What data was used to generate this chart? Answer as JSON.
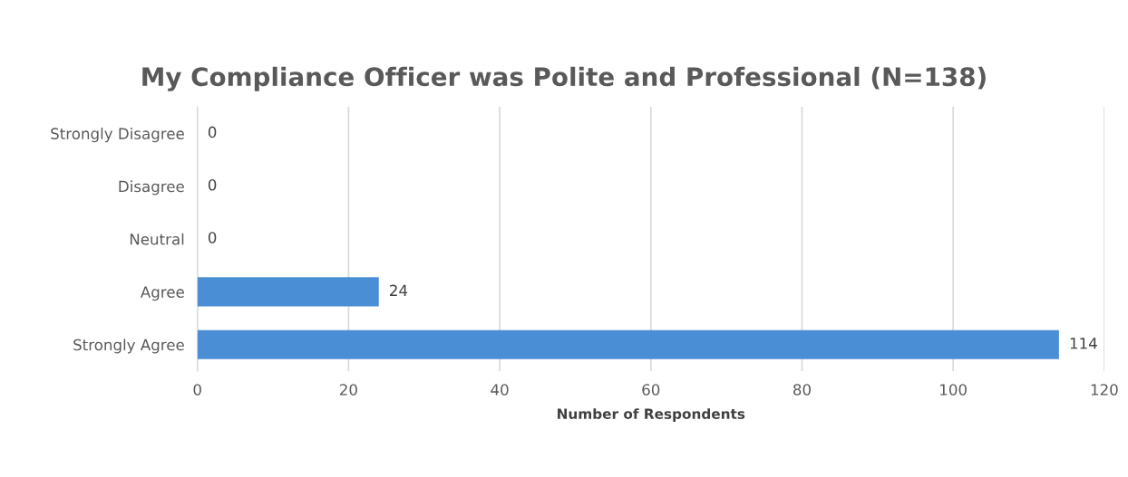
{
  "chart_data": {
    "type": "bar",
    "orientation": "horizontal",
    "title": "My Compliance Officer was Polite and Professional (N=138)",
    "xlabel": "Number of Respondents",
    "categories": [
      "Strongly Disagree",
      "Disagree",
      "Neutral",
      "Agree",
      "Strongly Agree"
    ],
    "values": [
      0,
      0,
      0,
      24,
      114
    ],
    "color": "#4a8ed6",
    "xlim": [
      0,
      120
    ],
    "xticks": [
      0,
      20,
      40,
      60,
      80,
      100,
      120
    ],
    "grid": "x",
    "data_labels": true
  }
}
